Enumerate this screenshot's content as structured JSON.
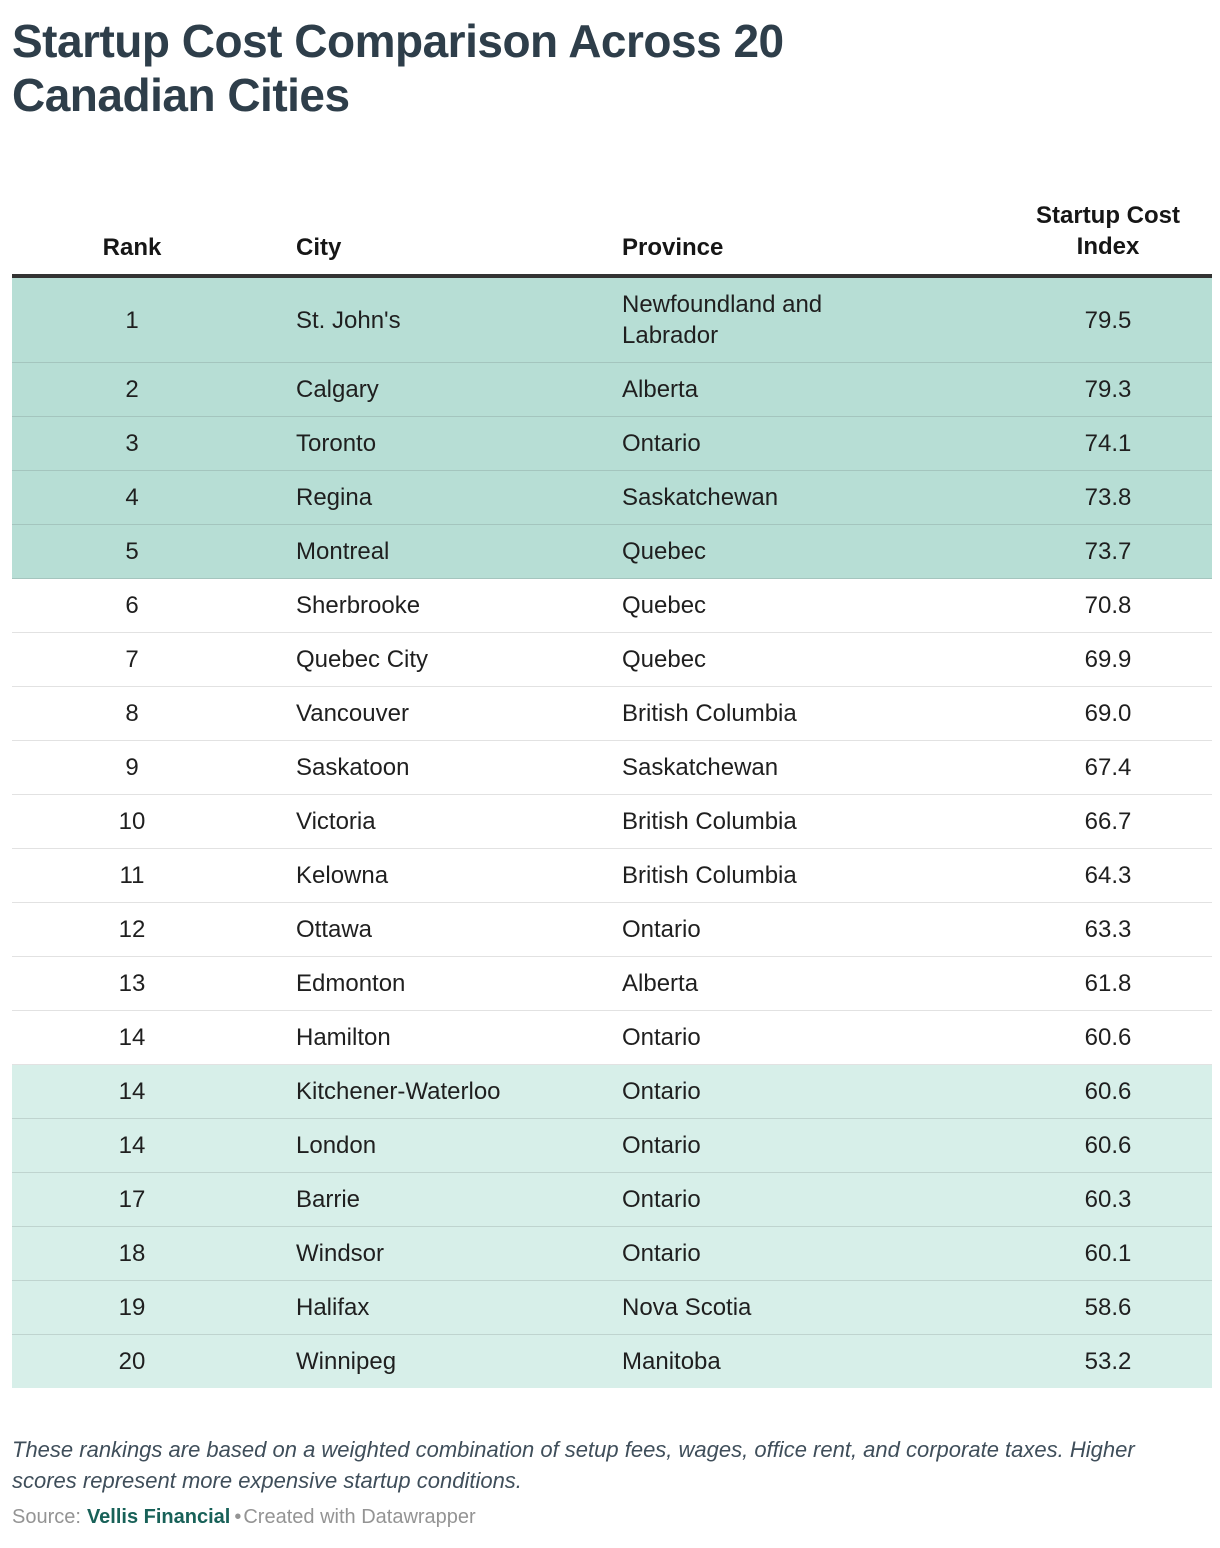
{
  "title": "Startup Cost Comparison Across 20 Canadian Cities",
  "colors": {
    "title": "#2e3e4a",
    "header_border": "#333333",
    "highlight_top": "#b7ded5",
    "highlight_bottom": "#d7efe9",
    "notes": "#3f4e5a",
    "source_gray": "#949494",
    "source_link": "#186158"
  },
  "chart_data": {
    "type": "table",
    "title": "Startup Cost Comparison Across 20 Canadian Cities",
    "columns": [
      "Rank",
      "City",
      "Province",
      "Startup Cost Index"
    ],
    "rows": [
      {
        "rank": "1",
        "city": "St. John's",
        "province": "Newfoundland and Labrador",
        "index": "79.5"
      },
      {
        "rank": "2",
        "city": "Calgary",
        "province": "Alberta",
        "index": "79.3"
      },
      {
        "rank": "3",
        "city": "Toronto",
        "province": "Ontario",
        "index": "74.1"
      },
      {
        "rank": "4",
        "city": "Regina",
        "province": "Saskatchewan",
        "index": "73.8"
      },
      {
        "rank": "5",
        "city": "Montreal",
        "province": "Quebec",
        "index": "73.7"
      },
      {
        "rank": "6",
        "city": "Sherbrooke",
        "province": "Quebec",
        "index": "70.8"
      },
      {
        "rank": "7",
        "city": "Quebec City",
        "province": "Quebec",
        "index": "69.9"
      },
      {
        "rank": "8",
        "city": "Vancouver",
        "province": "British Columbia",
        "index": "69.0"
      },
      {
        "rank": "9",
        "city": "Saskatoon",
        "province": "Saskatchewan",
        "index": "67.4"
      },
      {
        "rank": "10",
        "city": "Victoria",
        "province": "British Columbia",
        "index": "66.7"
      },
      {
        "rank": "11",
        "city": "Kelowna",
        "province": "British Columbia",
        "index": "64.3"
      },
      {
        "rank": "12",
        "city": "Ottawa",
        "province": "Ontario",
        "index": "63.3"
      },
      {
        "rank": "13",
        "city": "Edmonton",
        "province": "Alberta",
        "index": "61.8"
      },
      {
        "rank": "14",
        "city": "Hamilton",
        "province": "Ontario",
        "index": "60.6"
      },
      {
        "rank": "14",
        "city": "Kitchener-Waterloo",
        "province": "Ontario",
        "index": "60.6"
      },
      {
        "rank": "14",
        "city": "London",
        "province": "Ontario",
        "index": "60.6"
      },
      {
        "rank": "17",
        "city": "Barrie",
        "province": "Ontario",
        "index": "60.3"
      },
      {
        "rank": "18",
        "city": "Windsor",
        "province": "Ontario",
        "index": "60.1"
      },
      {
        "rank": "19",
        "city": "Halifax",
        "province": "Nova Scotia",
        "index": "58.6"
      },
      {
        "rank": "20",
        "city": "Winnipeg",
        "province": "Manitoba",
        "index": "53.2"
      }
    ],
    "top_highlight_rows": [
      0,
      1,
      2,
      3,
      4
    ],
    "bottom_highlight_rows": [
      14,
      15,
      16,
      17,
      18,
      19
    ],
    "legend_position": "none",
    "grid": "horizontal-row-separators"
  },
  "notes": "These rankings are based on a weighted combination of setup fees, wages, office rent, and corporate taxes. Higher scores represent more expensive startup conditions.",
  "source": {
    "label": "Source:",
    "name": "Vellis Financial",
    "separator": "•",
    "credit": "Created with Datawrapper"
  }
}
